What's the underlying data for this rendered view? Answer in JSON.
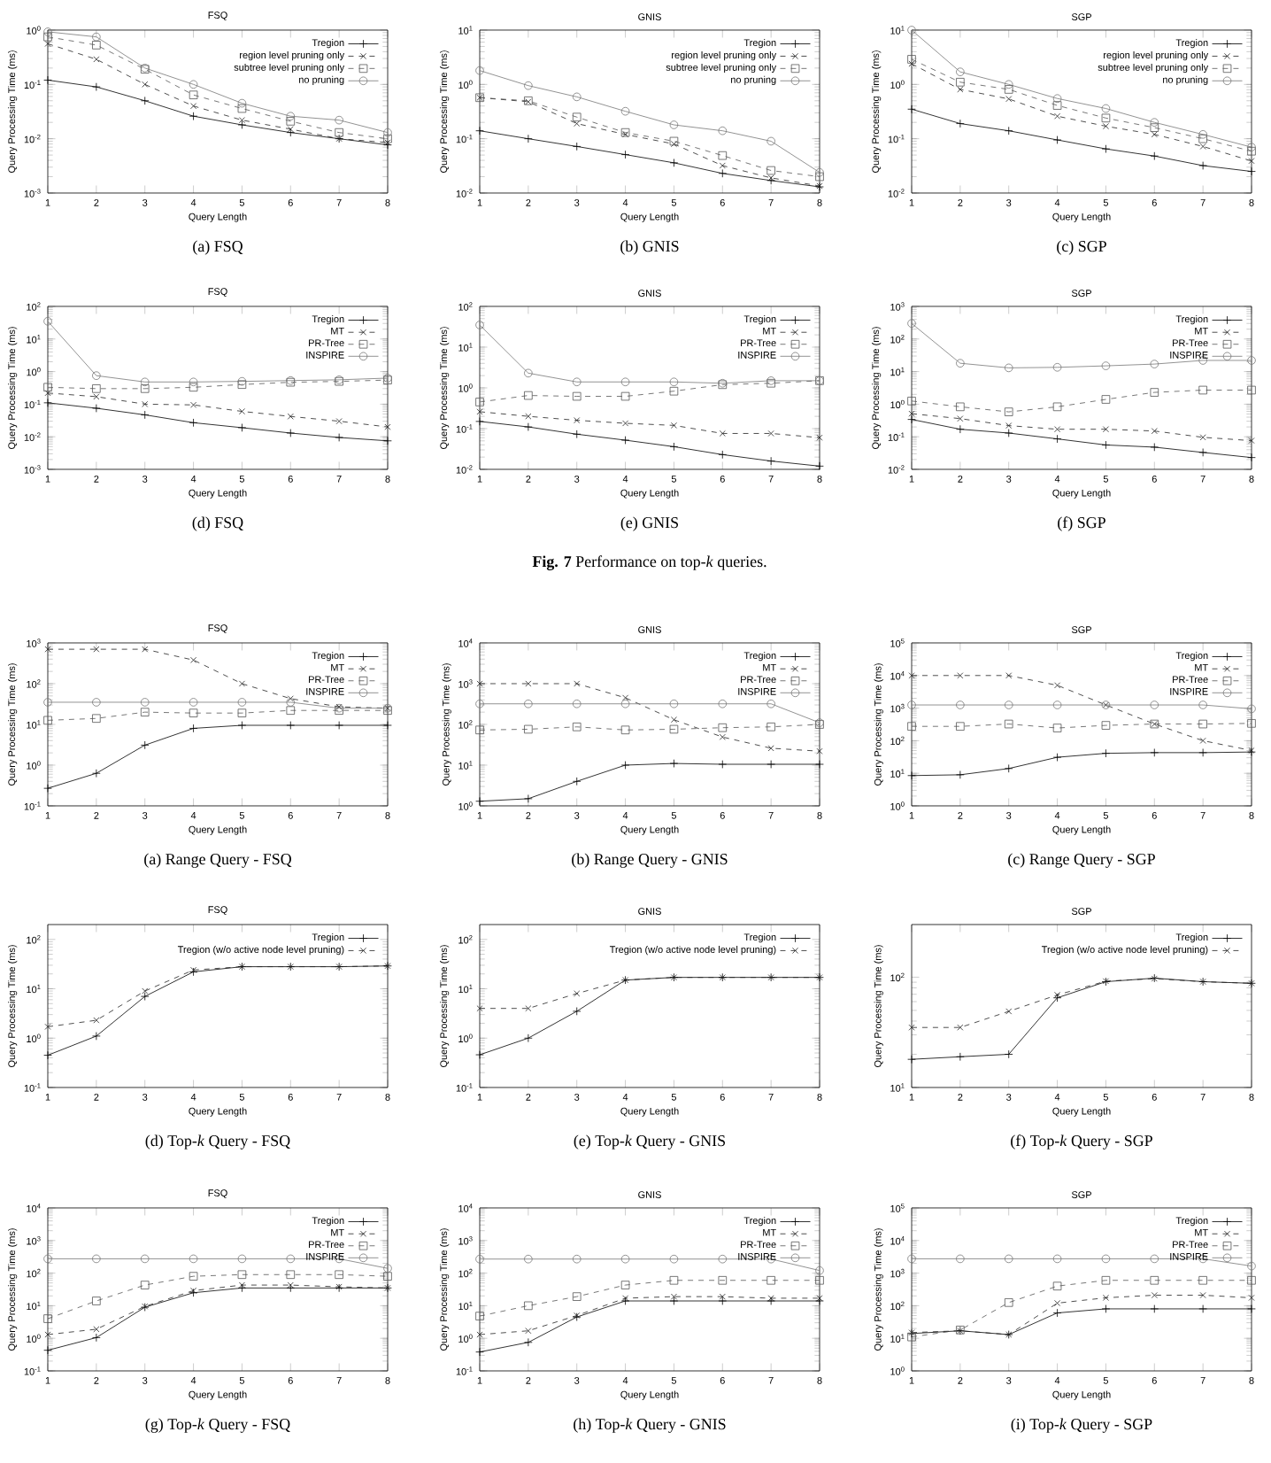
{
  "chart_data": [
    {
      "type": "line",
      "title": "FSQ",
      "xlabel": "Query Length",
      "ylabel": "Query Processing Time (ms)",
      "x": [
        1,
        2,
        3,
        4,
        5,
        6,
        7,
        8
      ],
      "xlim": [
        1,
        8
      ],
      "xticks": [
        1,
        2,
        3,
        4,
        5,
        6,
        7,
        8
      ],
      "log": "y",
      "ylim": [
        0.001,
        1
      ],
      "yticks": [
        {
          "value": 0.001,
          "label": "10$^{-3}$"
        },
        {
          "value": 0.01,
          "label": "10$^{-2}$"
        },
        {
          "value": 0.1,
          "label": "10$^{-1}$"
        },
        {
          "value": 1,
          "label": "10$^{0}$"
        }
      ],
      "legend": "top right",
      "annotations": [
        "(a)  FSQ"
      ],
      "series": [
        {
          "name": "Tregion",
          "color": "#000000",
          "marker": "plus",
          "line_style": "solid",
          "values": [
            0.12,
            0.09,
            0.05,
            0.026,
            0.018,
            0.013,
            0.01,
            0.0077
          ]
        },
        {
          "name": "region level pruning only",
          "color": "#222222",
          "marker": "cross",
          "line_style": "dashed",
          "values": [
            0.56,
            0.29,
            0.1,
            0.04,
            0.022,
            0.015,
            0.01,
            0.0085
          ]
        },
        {
          "name": "subtree level pruning only",
          "color": "#555555",
          "marker": "square",
          "line_style": "dashed",
          "values": [
            0.75,
            0.53,
            0.19,
            0.064,
            0.036,
            0.021,
            0.013,
            0.01
          ]
        },
        {
          "name": "no pruning",
          "color": "#777777",
          "marker": "circle",
          "line_style": "solid",
          "values": [
            0.93,
            0.75,
            0.2,
            0.1,
            0.045,
            0.026,
            0.022,
            0.013
          ]
        }
      ]
    },
    {
      "type": "line",
      "title": "GNIS",
      "xlabel": "Query Length",
      "ylabel": "Query Processing Time (ms)",
      "x": [
        1,
        2,
        3,
        4,
        5,
        6,
        7,
        8
      ],
      "xlim": [
        1,
        8
      ],
      "xticks": [
        1,
        2,
        3,
        4,
        5,
        6,
        7,
        8
      ],
      "log": "y",
      "ylim": [
        0.01,
        10
      ],
      "yticks": [
        {
          "value": 0.01,
          "label": "10$^{-2}$"
        },
        {
          "value": 0.1,
          "label": "10$^{-1}$"
        },
        {
          "value": 1,
          "label": "10$^{0}$"
        },
        {
          "value": 10,
          "label": "10$^{1}$"
        }
      ],
      "legend": "top right",
      "annotations": [
        "(b)  GNIS"
      ],
      "series": [
        {
          "name": "Tregion",
          "color": "#000000",
          "marker": "plus",
          "line_style": "solid",
          "values": [
            0.14,
            0.1,
            0.072,
            0.051,
            0.036,
            0.023,
            0.017,
            0.013
          ]
        },
        {
          "name": "region level pruning only",
          "color": "#222222",
          "marker": "cross",
          "line_style": "dashed",
          "values": [
            0.57,
            0.48,
            0.19,
            0.12,
            0.08,
            0.032,
            0.019,
            0.0135
          ]
        },
        {
          "name": "subtree level pruning only",
          "color": "#555555",
          "marker": "square",
          "line_style": "dashed",
          "values": [
            0.57,
            0.5,
            0.25,
            0.13,
            0.09,
            0.049,
            0.026,
            0.02
          ]
        },
        {
          "name": "no pruning",
          "color": "#777777",
          "marker": "circle",
          "line_style": "solid",
          "values": [
            1.8,
            0.95,
            0.59,
            0.32,
            0.18,
            0.14,
            0.09,
            0.024
          ]
        }
      ]
    },
    {
      "type": "line",
      "title": "SGP",
      "xlabel": "Query Length",
      "ylabel": "Query Processing Time (ms)",
      "x": [
        1,
        2,
        3,
        4,
        5,
        6,
        7,
        8
      ],
      "xlim": [
        1,
        8
      ],
      "xticks": [
        1,
        2,
        3,
        4,
        5,
        6,
        7,
        8
      ],
      "log": "y",
      "ylim": [
        0.01,
        10
      ],
      "yticks": [
        {
          "value": 0.01,
          "label": "10$^{-2}$"
        },
        {
          "value": 0.1,
          "label": "10$^{-1}$"
        },
        {
          "value": 1,
          "label": "10$^{0}$"
        },
        {
          "value": 10,
          "label": "10$^{1}$"
        }
      ],
      "legend": "top right",
      "annotations": [
        "(c)  SGP"
      ],
      "series": [
        {
          "name": "Tregion",
          "color": "#000000",
          "marker": "plus",
          "line_style": "solid",
          "values": [
            0.35,
            0.19,
            0.14,
            0.095,
            0.065,
            0.048,
            0.032,
            0.025
          ]
        },
        {
          "name": "region level pruning only",
          "color": "#222222",
          "marker": "cross",
          "line_style": "dashed",
          "values": [
            2.4,
            0.81,
            0.54,
            0.26,
            0.17,
            0.12,
            0.072,
            0.039
          ]
        },
        {
          "name": "subtree level pruning only",
          "color": "#555555",
          "marker": "square",
          "line_style": "dashed",
          "values": [
            2.9,
            1.1,
            0.81,
            0.41,
            0.24,
            0.16,
            0.1,
            0.059
          ]
        },
        {
          "name": "no pruning",
          "color": "#777777",
          "marker": "circle",
          "line_style": "solid",
          "values": [
            10,
            1.7,
            1.0,
            0.55,
            0.36,
            0.2,
            0.12,
            0.07
          ]
        }
      ]
    },
    {
      "type": "line",
      "title": "FSQ",
      "xlabel": "Query Length",
      "ylabel": "Query Processing Time (ms)",
      "x": [
        1,
        2,
        3,
        4,
        5,
        6,
        7,
        8
      ],
      "xlim": [
        1,
        8
      ],
      "xticks": [
        1,
        2,
        3,
        4,
        5,
        6,
        7,
        8
      ],
      "log": "y",
      "ylim": [
        0.001,
        100
      ],
      "yticks": [
        {
          "value": 0.001,
          "label": "10$^{-3}$"
        },
        {
          "value": 0.01,
          "label": "10$^{-2}$"
        },
        {
          "value": 0.1,
          "label": "10$^{-1}$"
        },
        {
          "value": 1,
          "label": "10$^{0}$"
        },
        {
          "value": 10,
          "label": "10$^{1}$"
        },
        {
          "value": 100,
          "label": "10$^{2}$"
        }
      ],
      "legend": "top right",
      "annotations": [
        "(d)  FSQ"
      ],
      "series": [
        {
          "name": "Tregion",
          "color": "#000000",
          "marker": "plus",
          "line_style": "solid",
          "values": [
            0.11,
            0.075,
            0.047,
            0.027,
            0.019,
            0.013,
            0.0095,
            0.0075
          ]
        },
        {
          "name": "MT",
          "color": "#222222",
          "marker": "cross",
          "line_style": "dashed",
          "values": [
            0.22,
            0.17,
            0.1,
            0.095,
            0.06,
            0.042,
            0.03,
            0.02
          ]
        },
        {
          "name": "PR-Tree",
          "color": "#555555",
          "marker": "square",
          "line_style": "dashed",
          "values": [
            0.33,
            0.3,
            0.3,
            0.33,
            0.4,
            0.47,
            0.5,
            0.55
          ]
        },
        {
          "name": "INSPIRE",
          "color": "#777777",
          "marker": "circle",
          "line_style": "solid",
          "values": [
            35,
            0.75,
            0.48,
            0.48,
            0.5,
            0.53,
            0.56,
            0.63
          ]
        }
      ]
    },
    {
      "type": "line",
      "title": "GNIS",
      "xlabel": "Query Length",
      "ylabel": "Query Processing Time (ms)",
      "x": [
        1,
        2,
        3,
        4,
        5,
        6,
        7,
        8
      ],
      "xlim": [
        1,
        8
      ],
      "xticks": [
        1,
        2,
        3,
        4,
        5,
        6,
        7,
        8
      ],
      "log": "y",
      "ylim": [
        0.01,
        100
      ],
      "yticks": [
        {
          "value": 0.01,
          "label": "10$^{-2}$"
        },
        {
          "value": 0.1,
          "label": "10$^{-1}$"
        },
        {
          "value": 1,
          "label": "10$^{0}$"
        },
        {
          "value": 10,
          "label": "10$^{1}$"
        },
        {
          "value": 100,
          "label": "10$^{2}$"
        }
      ],
      "legend": "top right",
      "annotations": [
        "(e)  GNIS",
        "**Fig. 7**     Performance on top-*k* queries."
      ],
      "series": [
        {
          "name": "Tregion",
          "color": "#000000",
          "marker": "plus",
          "line_style": "solid",
          "values": [
            0.15,
            0.11,
            0.073,
            0.052,
            0.036,
            0.023,
            0.016,
            0.012
          ]
        },
        {
          "name": "MT",
          "color": "#222222",
          "marker": "cross",
          "line_style": "dashed",
          "values": [
            0.26,
            0.2,
            0.16,
            0.135,
            0.12,
            0.076,
            0.076,
            0.06
          ]
        },
        {
          "name": "PR-Tree",
          "color": "#555555",
          "marker": "square",
          "line_style": "dashed",
          "values": [
            0.45,
            0.65,
            0.62,
            0.62,
            0.83,
            1.2,
            1.3,
            1.5
          ]
        },
        {
          "name": "INSPIRE",
          "color": "#777777",
          "marker": "circle",
          "line_style": "solid",
          "values": [
            35,
            2.3,
            1.4,
            1.4,
            1.4,
            1.3,
            1.5,
            1.5
          ]
        }
      ]
    },
    {
      "type": "line",
      "title": "SGP",
      "xlabel": "Query Length",
      "ylabel": "Query Processing Time (ms)",
      "x": [
        1,
        2,
        3,
        4,
        5,
        6,
        7,
        8
      ],
      "xlim": [
        1,
        8
      ],
      "xticks": [
        1,
        2,
        3,
        4,
        5,
        6,
        7,
        8
      ],
      "log": "y",
      "ylim": [
        0.01,
        1000
      ],
      "yticks": [
        {
          "value": 0.01,
          "label": "10$^{-2}$"
        },
        {
          "value": 0.1,
          "label": "10$^{-1}$"
        },
        {
          "value": 1,
          "label": "10$^{0}$"
        },
        {
          "value": 10,
          "label": "10$^{1}$"
        },
        {
          "value": 100,
          "label": "10$^{2}$"
        },
        {
          "value": 1000,
          "label": "10$^{3}$"
        }
      ],
      "legend": "top right",
      "annotations": [
        "(f)  SGP"
      ],
      "series": [
        {
          "name": "Tregion",
          "color": "#000000",
          "marker": "plus",
          "line_style": "solid",
          "values": [
            0.34,
            0.17,
            0.13,
            0.086,
            0.056,
            0.048,
            0.033,
            0.023
          ]
        },
        {
          "name": "MT",
          "color": "#222222",
          "marker": "cross",
          "line_style": "dashed",
          "values": [
            0.51,
            0.36,
            0.22,
            0.17,
            0.17,
            0.15,
            0.096,
            0.076
          ]
        },
        {
          "name": "PR-Tree",
          "color": "#555555",
          "marker": "square",
          "line_style": "dashed",
          "values": [
            1.25,
            0.83,
            0.58,
            0.83,
            1.4,
            2.3,
            2.7,
            2.7
          ]
        },
        {
          "name": "INSPIRE",
          "color": "#777777",
          "marker": "circle",
          "line_style": "solid",
          "values": [
            300,
            18,
            13,
            13.5,
            15,
            17,
            22,
            22
          ]
        }
      ]
    },
    {
      "type": "line",
      "title": "FSQ",
      "xlabel": "Query Length",
      "ylabel": "Query Processing Time (ms)",
      "x": [
        1,
        2,
        3,
        4,
        5,
        6,
        7,
        8
      ],
      "xlim": [
        1,
        8
      ],
      "xticks": [
        1,
        2,
        3,
        4,
        5,
        6,
        7,
        8
      ],
      "log": "y",
      "ylim": [
        0.1,
        1000
      ],
      "yticks": [
        {
          "value": 0.1,
          "label": "10$^{-1}$"
        },
        {
          "value": 1,
          "label": "10$^{0}$"
        },
        {
          "value": 10,
          "label": "10$^{1}$"
        },
        {
          "value": 100,
          "label": "10$^{2}$"
        },
        {
          "value": 1000,
          "label": "10$^{3}$"
        }
      ],
      "legend": "top right",
      "annotations": [
        "(a)  Range Query - FSQ"
      ],
      "series": [
        {
          "name": "Tregion",
          "color": "#000000",
          "marker": "plus",
          "line_style": "solid",
          "values": [
            0.27,
            0.63,
            3.1,
            8,
            9.5,
            9.5,
            9.5,
            9.5
          ]
        },
        {
          "name": "MT",
          "color": "#222222",
          "marker": "cross",
          "line_style": "dashed",
          "values": [
            700,
            700,
            700,
            380,
            100,
            43,
            27,
            25
          ]
        },
        {
          "name": "PR-Tree",
          "color": "#555555",
          "marker": "square",
          "line_style": "dashed",
          "values": [
            12.6,
            14,
            20,
            19,
            19,
            22,
            22,
            22
          ]
        },
        {
          "name": "INSPIRE",
          "color": "#777777",
          "marker": "circle",
          "line_style": "solid",
          "values": [
            35,
            35,
            35,
            35,
            35,
            35,
            25,
            25
          ]
        }
      ]
    },
    {
      "type": "line",
      "title": "GNIS",
      "xlabel": "Query Length",
      "ylabel": "Query Processing Time (ms)",
      "x": [
        1,
        2,
        3,
        4,
        5,
        6,
        7,
        8
      ],
      "xlim": [
        1,
        8
      ],
      "xticks": [
        1,
        2,
        3,
        4,
        5,
        6,
        7,
        8
      ],
      "log": "y",
      "ylim": [
        1,
        10000
      ],
      "yticks": [
        {
          "value": 1,
          "label": "10$^{0}$"
        },
        {
          "value": 10,
          "label": "10$^{1}$"
        },
        {
          "value": 100,
          "label": "10$^{2}$"
        },
        {
          "value": 1000,
          "label": "10$^{3}$"
        },
        {
          "value": 10000,
          "label": "10$^{4}$"
        }
      ],
      "legend": "top right",
      "annotations": [
        "(b)  Range Query - GNIS"
      ],
      "series": [
        {
          "name": "Tregion",
          "color": "#000000",
          "marker": "plus",
          "line_style": "solid",
          "values": [
            1.3,
            1.5,
            4,
            10,
            11,
            10.5,
            10.5,
            10.5
          ]
        },
        {
          "name": "MT",
          "color": "#222222",
          "marker": "cross",
          "line_style": "dashed",
          "values": [
            1000,
            1000,
            1000,
            450,
            130,
            49,
            26,
            22
          ]
        },
        {
          "name": "PR-Tree",
          "color": "#555555",
          "marker": "square",
          "line_style": "dashed",
          "values": [
            73,
            76,
            87,
            73,
            76,
            83,
            87,
            100
          ]
        },
        {
          "name": "INSPIRE",
          "color": "#777777",
          "marker": "circle",
          "line_style": "solid",
          "values": [
            320,
            320,
            320,
            320,
            320,
            320,
            320,
            110
          ]
        }
      ]
    },
    {
      "type": "line",
      "title": "SGP",
      "xlabel": "Query Length",
      "ylabel": "Query Processing Time (ms)",
      "x": [
        1,
        2,
        3,
        4,
        5,
        6,
        7,
        8
      ],
      "xlim": [
        1,
        8
      ],
      "xticks": [
        1,
        2,
        3,
        4,
        5,
        6,
        7,
        8
      ],
      "log": "y",
      "ylim": [
        1,
        100000
      ],
      "yticks": [
        {
          "value": 1,
          "label": "10$^{0}$"
        },
        {
          "value": 10,
          "label": "10$^{1}$"
        },
        {
          "value": 100,
          "label": "10$^{2}$"
        },
        {
          "value": 1000,
          "label": "10$^{3}$"
        },
        {
          "value": 10000,
          "label": "10$^{4}$"
        },
        {
          "value": 100000,
          "label": "10$^{5}$"
        }
      ],
      "legend": "top right",
      "annotations": [
        "(c)  Range Query - SGP"
      ],
      "series": [
        {
          "name": "Tregion",
          "color": "#000000",
          "marker": "plus",
          "line_style": "solid",
          "values": [
            8.5,
            9,
            14,
            31,
            41,
            43,
            43,
            45
          ]
        },
        {
          "name": "MT",
          "color": "#222222",
          "marker": "cross",
          "line_style": "dashed",
          "values": [
            10000,
            10000,
            10000,
            5000,
            1250,
            325,
            100,
            50
          ]
        },
        {
          "name": "PR-Tree",
          "color": "#555555",
          "marker": "square",
          "line_style": "dashed",
          "values": [
            275,
            275,
            325,
            245,
            295,
            325,
            325,
            340
          ]
        },
        {
          "name": "INSPIRE",
          "color": "#777777",
          "marker": "circle",
          "line_style": "solid",
          "values": [
            1250,
            1250,
            1250,
            1250,
            1250,
            1250,
            1250,
            950
          ]
        }
      ]
    },
    {
      "type": "line",
      "title": "FSQ",
      "xlabel": "Query Length",
      "ylabel": "Query Processing Time (ms)",
      "x": [
        1,
        2,
        3,
        4,
        5,
        6,
        7,
        8
      ],
      "xlim": [
        1,
        8
      ],
      "xticks": [
        1,
        2,
        3,
        4,
        5,
        6,
        7,
        8
      ],
      "log": "y",
      "ylim": [
        0.1,
        200
      ],
      "yticks": [
        {
          "value": 0.1,
          "label": "10$^{-1}$"
        },
        {
          "value": 1,
          "label": "10$^{0}$"
        },
        {
          "value": 10,
          "label": "10$^{1}$"
        },
        {
          "value": 100,
          "label": "10$^{2}$"
        }
      ],
      "legend": "top right",
      "annotations": [
        "(d)  Top-*k* Query - FSQ"
      ],
      "series": [
        {
          "name": "Tregion",
          "color": "#000000",
          "marker": "plus",
          "line_style": "solid",
          "values": [
            0.45,
            1.1,
            7,
            22,
            28,
            28,
            28,
            29
          ]
        },
        {
          "name": "Tregion (w/o active node level pruning)",
          "color": "#222222",
          "marker": "cross",
          "line_style": "dashed",
          "values": [
            1.7,
            2.3,
            9,
            24,
            28,
            28,
            28,
            29
          ]
        }
      ]
    },
    {
      "type": "line",
      "title": "GNIS",
      "xlabel": "Query Length",
      "ylabel": "Query Processing Time (ms)",
      "x": [
        1,
        2,
        3,
        4,
        5,
        6,
        7,
        8
      ],
      "xlim": [
        1,
        8
      ],
      "xticks": [
        1,
        2,
        3,
        4,
        5,
        6,
        7,
        8
      ],
      "log": "y",
      "ylim": [
        0.1,
        200
      ],
      "yticks": [
        {
          "value": 0.1,
          "label": "10$^{-1}$"
        },
        {
          "value": 1,
          "label": "10$^{0}$"
        },
        {
          "value": 10,
          "label": "10$^{1}$"
        },
        {
          "value": 100,
          "label": "10$^{2}$"
        }
      ],
      "legend": "top right",
      "annotations": [
        "(e)  Top-*k* Query - GNIS"
      ],
      "series": [
        {
          "name": "Tregion",
          "color": "#000000",
          "marker": "plus",
          "line_style": "solid",
          "values": [
            0.46,
            1.0,
            3.5,
            15,
            17,
            17,
            17,
            17
          ]
        },
        {
          "name": "Tregion (w/o active node level pruning)",
          "color": "#222222",
          "marker": "cross",
          "line_style": "dashed",
          "values": [
            4,
            4,
            8,
            15,
            17,
            17,
            17,
            17
          ]
        }
      ]
    },
    {
      "type": "line",
      "title": "SGP",
      "xlabel": "Query Length",
      "ylabel": "Query Processing Time (ms)",
      "x": [
        1,
        2,
        3,
        4,
        5,
        6,
        7,
        8
      ],
      "xlim": [
        1,
        8
      ],
      "xticks": [
        1,
        2,
        3,
        4,
        5,
        6,
        7,
        8
      ],
      "log": "y",
      "ylim": [
        10,
        300
      ],
      "yticks": [
        {
          "value": 10,
          "label": "10$^{1}$"
        },
        {
          "value": 100,
          "label": "10$^{2}$"
        }
      ],
      "legend": "top right",
      "annotations": [
        "(f)  Top-*k* Query - SGP"
      ],
      "series": [
        {
          "name": "Tregion",
          "color": "#000000",
          "marker": "plus",
          "line_style": "solid",
          "values": [
            18,
            19,
            20,
            65,
            91,
            98,
            91,
            88
          ]
        },
        {
          "name": "Tregion (w/o active node level pruning)",
          "color": "#222222",
          "marker": "cross",
          "line_style": "dashed",
          "values": [
            35,
            35,
            49,
            69,
            92,
            97,
            91,
            88
          ]
        }
      ]
    },
    {
      "type": "line",
      "title": "FSQ",
      "xlabel": "Query Length",
      "ylabel": "Query Processing Time (ms)",
      "x": [
        1,
        2,
        3,
        4,
        5,
        6,
        7,
        8
      ],
      "xlim": [
        1,
        8
      ],
      "xticks": [
        1,
        2,
        3,
        4,
        5,
        6,
        7,
        8
      ],
      "log": "y",
      "ylim": [
        0.1,
        10000
      ],
      "yticks": [
        {
          "value": 0.1,
          "label": "10$^{-1}$"
        },
        {
          "value": 1,
          "label": "10$^{0}$"
        },
        {
          "value": 10,
          "label": "10$^{1}$"
        },
        {
          "value": 100,
          "label": "10$^{2}$"
        },
        {
          "value": 1000,
          "label": "10$^{3}$"
        },
        {
          "value": 10000,
          "label": "10$^{4}$"
        }
      ],
      "legend": "top right",
      "annotations": [
        "(g)  Top-*k* Query - FSQ"
      ],
      "series": [
        {
          "name": "Tregion",
          "color": "#000000",
          "marker": "plus",
          "line_style": "solid",
          "values": [
            0.43,
            1.05,
            9,
            25,
            35,
            35,
            35,
            35
          ]
        },
        {
          "name": "MT",
          "color": "#222222",
          "marker": "cross",
          "line_style": "dashed",
          "values": [
            1.3,
            1.9,
            9.5,
            29,
            43,
            43,
            38,
            35
          ]
        },
        {
          "name": "PR-Tree",
          "color": "#555555",
          "marker": "square",
          "line_style": "dashed",
          "values": [
            4,
            14,
            43,
            80,
            90,
            90,
            90,
            80
          ]
        },
        {
          "name": "INSPIRE",
          "color": "#777777",
          "marker": "circle",
          "line_style": "solid",
          "values": [
            275,
            275,
            275,
            275,
            275,
            275,
            275,
            140
          ]
        }
      ]
    },
    {
      "type": "line",
      "title": "GNIS",
      "xlabel": "Query Length",
      "ylabel": "Query Processing Time (ms)",
      "x": [
        1,
        2,
        3,
        4,
        5,
        6,
        7,
        8
      ],
      "xlim": [
        1,
        8
      ],
      "xticks": [
        1,
        2,
        3,
        4,
        5,
        6,
        7,
        8
      ],
      "log": "y",
      "ylim": [
        0.1,
        10000
      ],
      "yticks": [
        {
          "value": 0.1,
          "label": "10$^{-1}$"
        },
        {
          "value": 1,
          "label": "10$^{0}$"
        },
        {
          "value": 10,
          "label": "10$^{1}$"
        },
        {
          "value": 100,
          "label": "10$^{2}$"
        },
        {
          "value": 1000,
          "label": "10$^{3}$"
        },
        {
          "value": 10000,
          "label": "10$^{4}$"
        }
      ],
      "legend": "top right",
      "annotations": [
        "(h)  Top-*k* Query - GNIS"
      ],
      "series": [
        {
          "name": "Tregion",
          "color": "#000000",
          "marker": "plus",
          "line_style": "solid",
          "values": [
            0.38,
            0.75,
            4.5,
            14,
            14,
            14,
            14,
            14
          ]
        },
        {
          "name": "MT",
          "color": "#222222",
          "marker": "cross",
          "line_style": "dashed",
          "values": [
            1.3,
            1.7,
            5,
            17,
            19,
            19,
            17,
            17
          ]
        },
        {
          "name": "PR-Tree",
          "color": "#555555",
          "marker": "square",
          "line_style": "dashed",
          "values": [
            4.8,
            10,
            19,
            43,
            60,
            60,
            60,
            60
          ]
        },
        {
          "name": "INSPIRE",
          "color": "#777777",
          "marker": "circle",
          "line_style": "solid",
          "values": [
            270,
            270,
            270,
            270,
            270,
            270,
            270,
            120
          ]
        }
      ]
    },
    {
      "type": "line",
      "title": "SGP",
      "xlabel": "Query Length",
      "ylabel": "Query Processing Time (ms)",
      "x": [
        1,
        2,
        3,
        4,
        5,
        6,
        7,
        8
      ],
      "xlim": [
        1,
        8
      ],
      "xticks": [
        1,
        2,
        3,
        4,
        5,
        6,
        7,
        8
      ],
      "log": "y",
      "ylim": [
        1,
        100000
      ],
      "yticks": [
        {
          "value": 1,
          "label": "10$^{0}$"
        },
        {
          "value": 10,
          "label": "10$^{1}$"
        },
        {
          "value": 100,
          "label": "10$^{2}$"
        },
        {
          "value": 1000,
          "label": "10$^{3}$"
        },
        {
          "value": 10000,
          "label": "10$^{4}$"
        },
        {
          "value": 100000,
          "label": "10$^{5}$"
        }
      ],
      "legend": "top right",
      "annotations": [
        "(i)  Top-*k* Query - SGP"
      ],
      "series": [
        {
          "name": "Tregion",
          "color": "#000000",
          "marker": "plus",
          "line_style": "solid",
          "values": [
            14,
            17,
            13,
            60,
            80,
            80,
            80,
            80
          ]
        },
        {
          "name": "MT",
          "color": "#222222",
          "marker": "cross",
          "line_style": "dashed",
          "values": [
            15,
            17,
            13,
            120,
            175,
            210,
            210,
            175
          ]
        },
        {
          "name": "PR-Tree",
          "color": "#555555",
          "marker": "square",
          "line_style": "dashed",
          "values": [
            11,
            18,
            125,
            400,
            600,
            600,
            600,
            600
          ]
        },
        {
          "name": "INSPIRE",
          "color": "#777777",
          "marker": "circle",
          "line_style": "solid",
          "values": [
            2750,
            2750,
            2750,
            2750,
            2750,
            2750,
            2750,
            1650
          ]
        }
      ]
    }
  ]
}
